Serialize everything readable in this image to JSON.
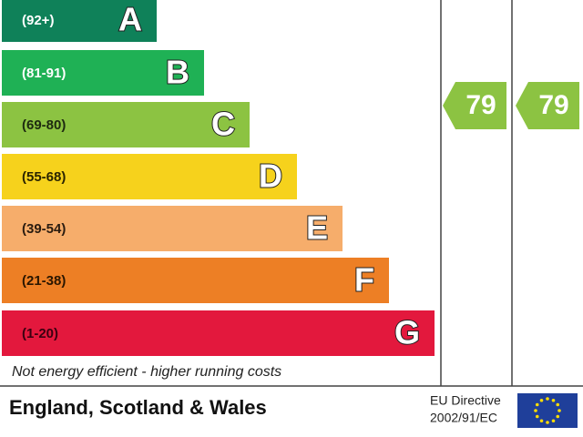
{
  "bands": [
    {
      "range": "(92+)",
      "letter": "A",
      "color": "#0f8159",
      "text_color": "#ffffff"
    },
    {
      "range": "(81-91)",
      "letter": "B",
      "color": "#1fb155",
      "text_color": "#ffffff"
    },
    {
      "range": "(69-80)",
      "letter": "C",
      "color": "#8cc342",
      "text_color": "#1e2a10"
    },
    {
      "range": "(55-68)",
      "letter": "D",
      "color": "#f6d21c",
      "text_color": "#2a2400"
    },
    {
      "range": "(39-54)",
      "letter": "E",
      "color": "#f6ad6b",
      "text_color": "#2a1c10"
    },
    {
      "range": "(21-38)",
      "letter": "F",
      "color": "#ed7f25",
      "text_color": "#2a1600"
    },
    {
      "range": "(1-20)",
      "letter": "G",
      "color": "#e3183d",
      "text_color": "#3a0010"
    }
  ],
  "ratings": [
    {
      "value": 79,
      "color": "#8cc342"
    },
    {
      "value": 79,
      "color": "#8cc342"
    }
  ],
  "note": "Not energy efficient - higher running costs",
  "footer": {
    "region": "England, Scotland & Wales",
    "directive_title": "EU Directive",
    "directive_number": "2002/91/EC"
  }
}
